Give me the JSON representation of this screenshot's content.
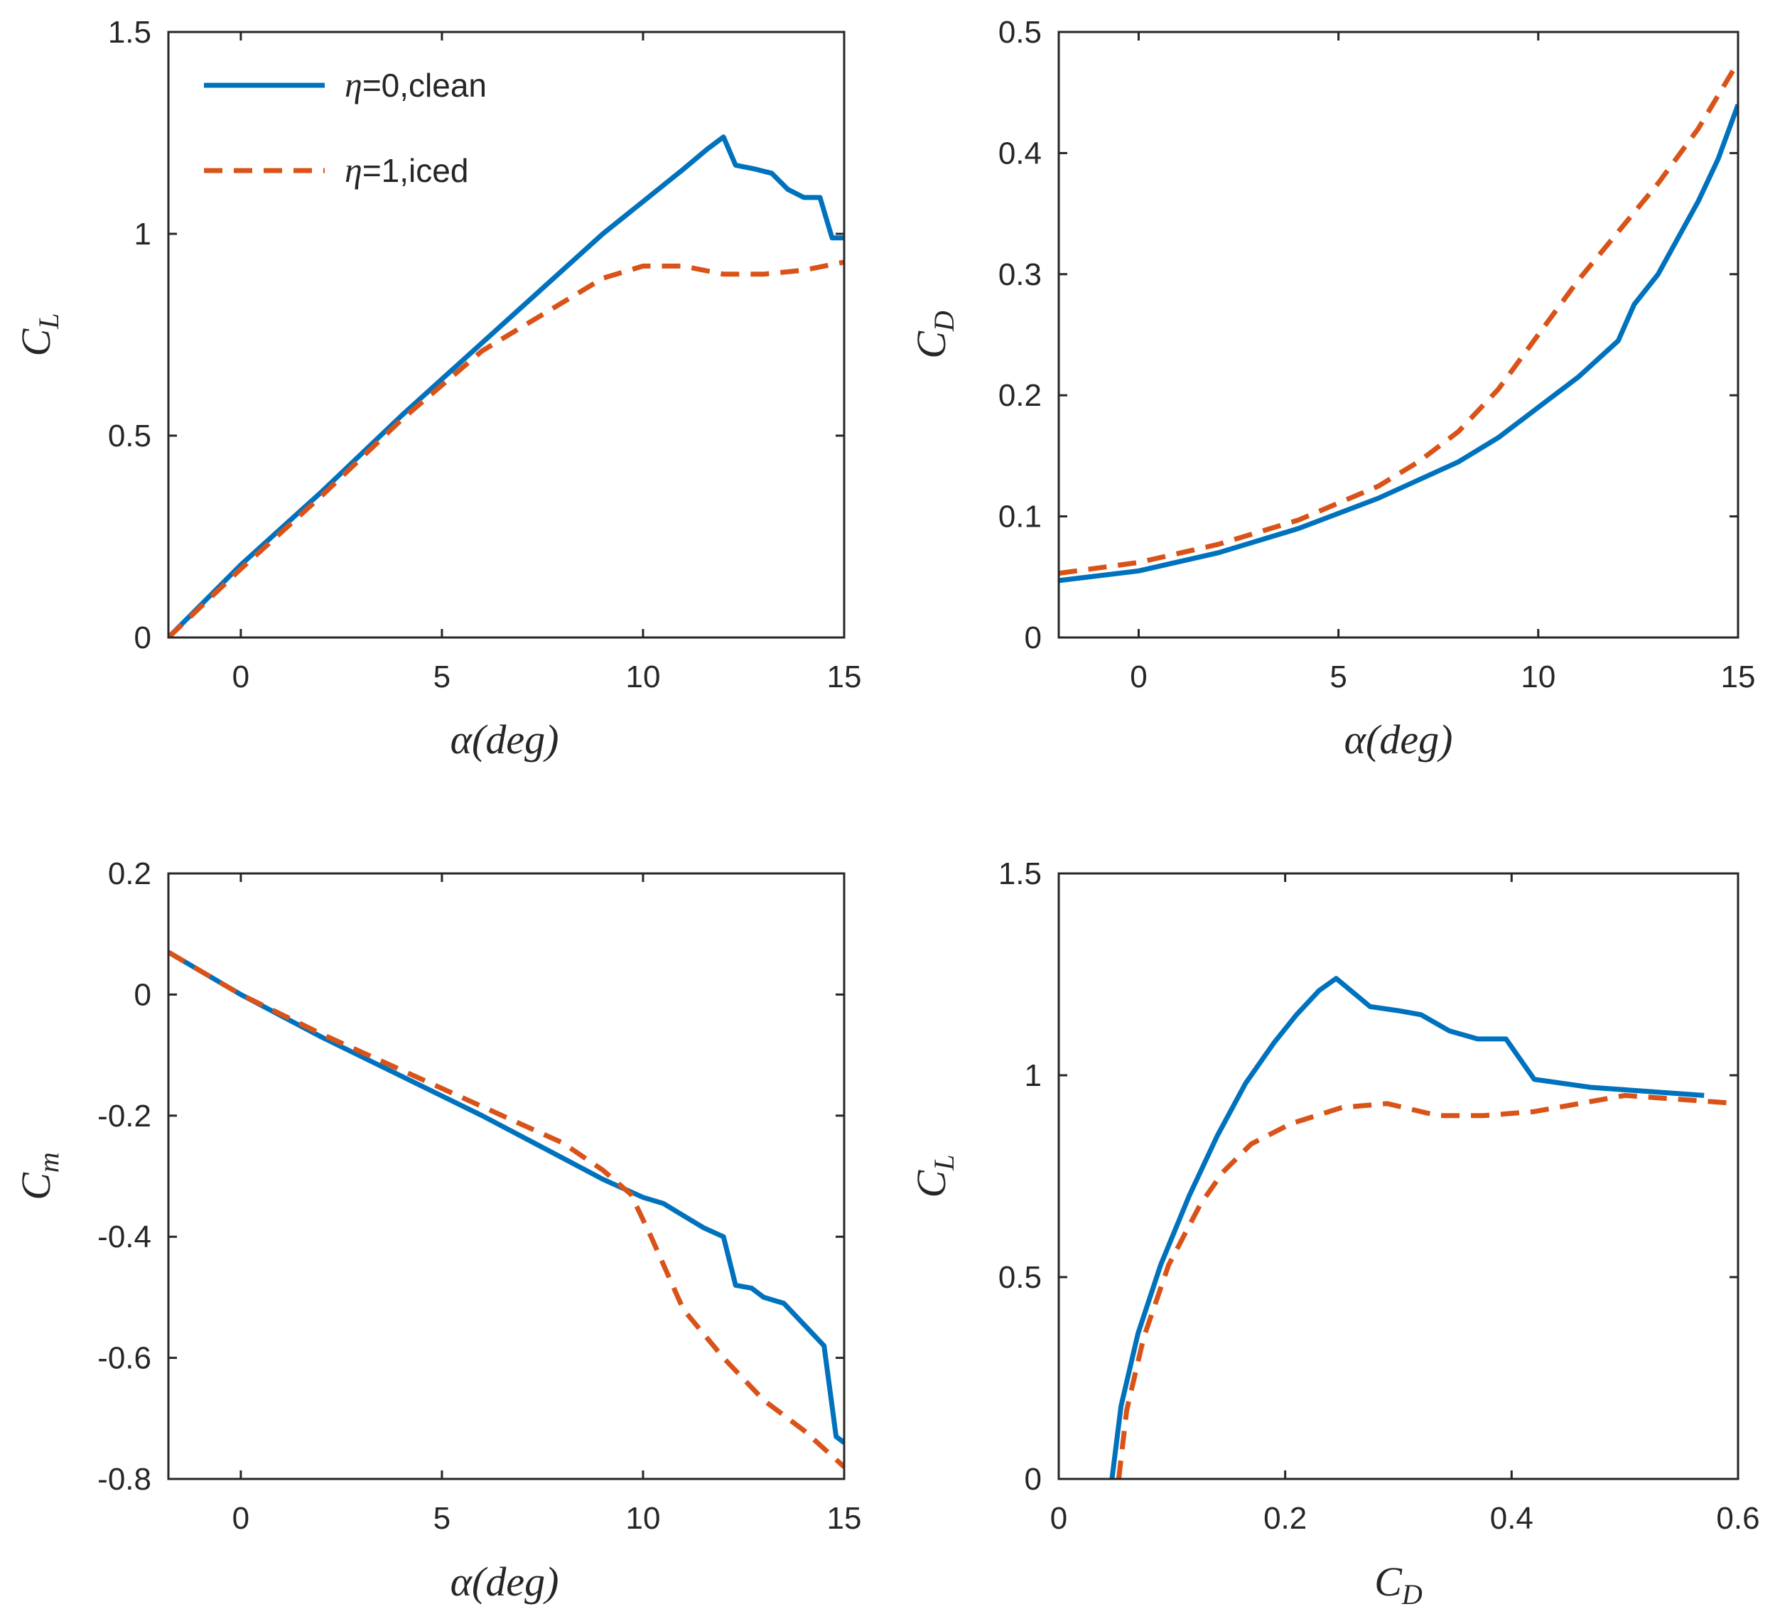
{
  "colors": {
    "clean": "#0072BD",
    "iced": "#D95319",
    "axis": "#262626"
  },
  "legend": [
    {
      "series": "clean",
      "eta_symbol": "η",
      "label": "=0,clean"
    },
    {
      "series": "iced",
      "eta_symbol": "η",
      "label": "=1,iced"
    }
  ],
  "chart_data": [
    {
      "id": "cl_alpha",
      "type": "line",
      "xlabel": {
        "main": "α(deg)"
      },
      "ylabel": {
        "main": "C",
        "sub": "L"
      },
      "xlim": [
        -1.8,
        15
      ],
      "ylim": [
        0,
        1.5
      ],
      "xticks": [
        0,
        5,
        10,
        15
      ],
      "xtick_labels": [
        "0",
        "5",
        "10",
        "15"
      ],
      "yticks": [
        0,
        0.5,
        1,
        1.5
      ],
      "ytick_labels": [
        "0",
        "0.5",
        "1",
        "1.5"
      ],
      "series": [
        {
          "name": "η=0,clean",
          "style": "solid",
          "color_key": "clean",
          "x": [
            -1.8,
            0,
            2,
            4,
            6,
            8,
            9,
            10,
            11,
            11.6,
            12,
            12.3,
            12.8,
            13.2,
            13.6,
            14,
            14.4,
            14.7,
            15
          ],
          "y": [
            0,
            0.18,
            0.36,
            0.55,
            0.73,
            0.91,
            1.0,
            1.08,
            1.16,
            1.21,
            1.24,
            1.17,
            1.16,
            1.15,
            1.11,
            1.09,
            1.09,
            0.99,
            0.99
          ]
        },
        {
          "name": "η=1,iced",
          "style": "dashed",
          "color_key": "iced",
          "x": [
            -1.8,
            0,
            2,
            4,
            6,
            8,
            9,
            10,
            11,
            12,
            13,
            14,
            15
          ],
          "y": [
            0,
            0.17,
            0.35,
            0.54,
            0.71,
            0.83,
            0.89,
            0.92,
            0.92,
            0.9,
            0.9,
            0.91,
            0.93
          ]
        }
      ]
    },
    {
      "id": "cd_alpha",
      "type": "line",
      "xlabel": {
        "main": "α(deg)"
      },
      "ylabel": {
        "main": "C",
        "sub": "D"
      },
      "xlim": [
        -2,
        15
      ],
      "ylim": [
        0,
        0.5
      ],
      "xticks": [
        0,
        5,
        10,
        15
      ],
      "xtick_labels": [
        "0",
        "5",
        "10",
        "15"
      ],
      "yticks": [
        0,
        0.1,
        0.2,
        0.3,
        0.4,
        0.5
      ],
      "ytick_labels": [
        "0",
        "0.1",
        "0.2",
        "0.3",
        "0.4",
        "0.5"
      ],
      "series": [
        {
          "name": "η=0,clean",
          "style": "solid",
          "color_key": "clean",
          "x": [
            -2,
            0,
            2,
            4,
            6,
            8,
            9,
            10,
            11,
            12,
            12.4,
            13,
            13.5,
            14,
            14.5,
            15
          ],
          "y": [
            0.047,
            0.055,
            0.07,
            0.09,
            0.115,
            0.145,
            0.165,
            0.19,
            0.215,
            0.245,
            0.275,
            0.3,
            0.33,
            0.36,
            0.395,
            0.44
          ]
        },
        {
          "name": "η=1,iced",
          "style": "dashed",
          "color_key": "iced",
          "x": [
            -2,
            0,
            2,
            4,
            6,
            7,
            8,
            9,
            10,
            11,
            12,
            13,
            14,
            15
          ],
          "y": [
            0.053,
            0.062,
            0.077,
            0.097,
            0.125,
            0.145,
            0.17,
            0.205,
            0.25,
            0.295,
            0.335,
            0.375,
            0.42,
            0.475
          ]
        }
      ]
    },
    {
      "id": "cm_alpha",
      "type": "line",
      "xlabel": {
        "main": "α(deg)"
      },
      "ylabel": {
        "main": "C",
        "sub": "m"
      },
      "xlim": [
        -1.8,
        15
      ],
      "ylim": [
        -0.8,
        0.2
      ],
      "xticks": [
        0,
        5,
        10,
        15
      ],
      "xtick_labels": [
        "0",
        "5",
        "10",
        "15"
      ],
      "yticks": [
        -0.8,
        -0.6,
        -0.4,
        -0.2,
        0,
        0.2
      ],
      "ytick_labels": [
        "-0.8",
        "-0.6",
        "-0.4",
        "-0.2",
        "0",
        "0.2"
      ],
      "series": [
        {
          "name": "η=0,clean",
          "style": "solid",
          "color_key": "clean",
          "x": [
            -1.8,
            0,
            2,
            4,
            6,
            8,
            9,
            10,
            10.5,
            11,
            11.5,
            12,
            12.3,
            12.7,
            13,
            13.5,
            14,
            14.5,
            14.8,
            15
          ],
          "y": [
            0.07,
            0.0,
            -0.07,
            -0.135,
            -0.2,
            -0.27,
            -0.305,
            -0.335,
            -0.345,
            -0.365,
            -0.385,
            -0.4,
            -0.48,
            -0.485,
            -0.5,
            -0.51,
            -0.545,
            -0.58,
            -0.73,
            -0.74
          ]
        },
        {
          "name": "η=1,iced",
          "style": "dashed",
          "color_key": "iced",
          "x": [
            -1.8,
            0,
            2,
            4,
            6,
            8,
            9,
            9.7,
            10.2,
            11,
            12,
            13,
            14,
            15
          ],
          "y": [
            0.07,
            0.0,
            -0.065,
            -0.125,
            -0.185,
            -0.245,
            -0.29,
            -0.33,
            -0.4,
            -0.52,
            -0.6,
            -0.67,
            -0.72,
            -0.78
          ]
        }
      ]
    },
    {
      "id": "cl_cd",
      "type": "line",
      "xlabel": {
        "main": "C",
        "sub": "D"
      },
      "ylabel": {
        "main": "C",
        "sub": "L"
      },
      "xlim": [
        0,
        0.6
      ],
      "ylim": [
        0,
        1.5
      ],
      "xticks": [
        0,
        0.2,
        0.4,
        0.6
      ],
      "xtick_labels": [
        "0",
        "0.2",
        "0.4",
        "0.6"
      ],
      "yticks": [
        0,
        0.5,
        1,
        1.5
      ],
      "ytick_labels": [
        "0",
        "0.5",
        "1",
        "1.5"
      ],
      "series": [
        {
          "name": "η=0,clean",
          "style": "solid",
          "color_key": "clean",
          "x": [
            0.047,
            0.055,
            0.07,
            0.09,
            0.115,
            0.14,
            0.165,
            0.19,
            0.21,
            0.23,
            0.245,
            0.275,
            0.3,
            0.32,
            0.345,
            0.37,
            0.395,
            0.42,
            0.47,
            0.57
          ],
          "y": [
            0,
            0.18,
            0.36,
            0.53,
            0.7,
            0.85,
            0.98,
            1.08,
            1.15,
            1.21,
            1.24,
            1.17,
            1.16,
            1.15,
            1.11,
            1.09,
            1.09,
            0.99,
            0.97,
            0.95
          ]
        },
        {
          "name": "η=1,iced",
          "style": "dashed",
          "color_key": "iced",
          "x": [
            0.053,
            0.06,
            0.075,
            0.097,
            0.125,
            0.145,
            0.17,
            0.205,
            0.25,
            0.29,
            0.335,
            0.375,
            0.42,
            0.5,
            0.6
          ],
          "y": [
            0,
            0.17,
            0.35,
            0.53,
            0.68,
            0.76,
            0.83,
            0.88,
            0.92,
            0.93,
            0.9,
            0.9,
            0.91,
            0.95,
            0.93
          ]
        }
      ]
    }
  ]
}
